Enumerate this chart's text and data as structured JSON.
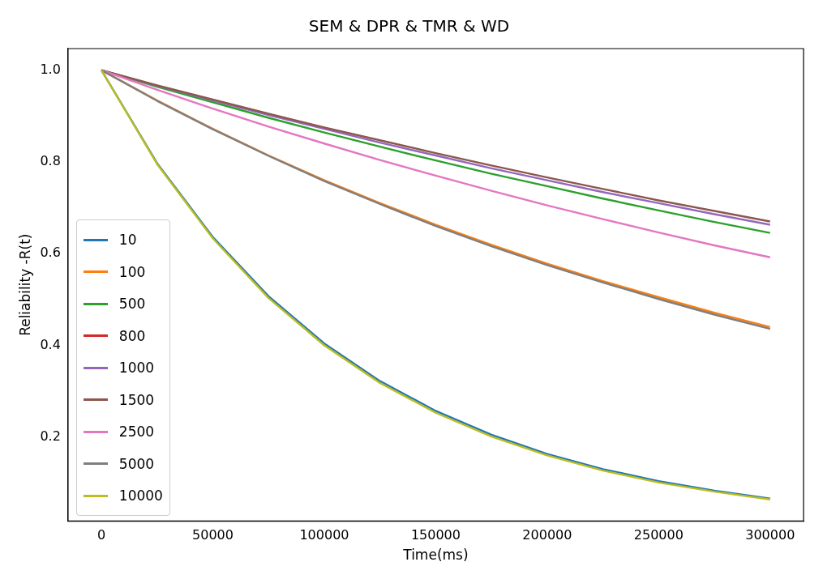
{
  "chart_data": {
    "type": "line",
    "title": "SEM & DPR & TMR & WD",
    "xlabel": "Time(ms)",
    "ylabel": "Reliability -R(t)",
    "x": [
      0,
      25000,
      50000,
      75000,
      100000,
      125000,
      150000,
      175000,
      200000,
      225000,
      250000,
      275000,
      300000
    ],
    "xlim": [
      -15000,
      315000
    ],
    "xticks": [
      0,
      50000,
      100000,
      150000,
      200000,
      250000,
      300000
    ],
    "ylim": [
      0.017,
      1.047
    ],
    "yticks": [
      0.2,
      0.4,
      0.6,
      0.8,
      {
        "value": 1,
        "label": "1.0"
      }
    ],
    "legend": "bottom left",
    "grid": false,
    "marker": "none",
    "line_style": "solid",
    "series": [
      {
        "name": "10",
        "color": "#1f77b4",
        "values": [
          1,
          0.797,
          0.636,
          0.507,
          0.404,
          0.322,
          0.257,
          0.205,
          0.163,
          0.13,
          0.104,
          0.083,
          0.066
        ]
      },
      {
        "name": "100",
        "color": "#ff7f0e",
        "values": [
          1,
          0.934,
          0.872,
          0.814,
          0.76,
          0.71,
          0.663,
          0.619,
          0.578,
          0.54,
          0.505,
          0.471,
          0.44
        ]
      },
      {
        "name": "500",
        "color": "#2ca02c",
        "values": [
          1,
          0.964,
          0.93,
          0.896,
          0.864,
          0.833,
          0.803,
          0.774,
          0.747,
          0.72,
          0.694,
          0.669,
          0.645
        ]
      },
      {
        "name": "800",
        "color": "#d62728",
        "values": [
          null,
          null,
          null,
          null,
          null,
          null,
          null,
          null,
          null,
          null,
          null,
          null,
          null
        ]
      },
      {
        "name": "1000",
        "color": "#9467bd",
        "values": [
          1,
          0.966,
          0.934,
          0.902,
          0.872,
          0.842,
          0.814,
          0.786,
          0.76,
          0.734,
          0.71,
          0.686,
          0.663
        ]
      },
      {
        "name": "1500",
        "color": "#8c564b",
        "values": [
          1,
          0.967,
          0.936,
          0.905,
          0.875,
          0.847,
          0.819,
          0.792,
          0.766,
          0.741,
          0.716,
          0.693,
          0.67
        ]
      },
      {
        "name": "2500",
        "color": "#e377c2",
        "values": [
          1,
          0.957,
          0.916,
          0.877,
          0.84,
          0.804,
          0.77,
          0.737,
          0.705,
          0.675,
          0.646,
          0.618,
          0.592
        ]
      },
      {
        "name": "5000",
        "color": "#7f7f7f",
        "values": [
          1,
          0.933,
          0.871,
          0.813,
          0.758,
          0.708,
          0.66,
          0.616,
          0.575,
          0.537,
          0.501,
          0.467,
          0.436
        ]
      },
      {
        "name": "10000",
        "color": "#bcbd22",
        "values": [
          1,
          0.795,
          0.633,
          0.503,
          0.4,
          0.318,
          0.253,
          0.201,
          0.16,
          0.127,
          0.101,
          0.081,
          0.064
        ]
      }
    ]
  }
}
